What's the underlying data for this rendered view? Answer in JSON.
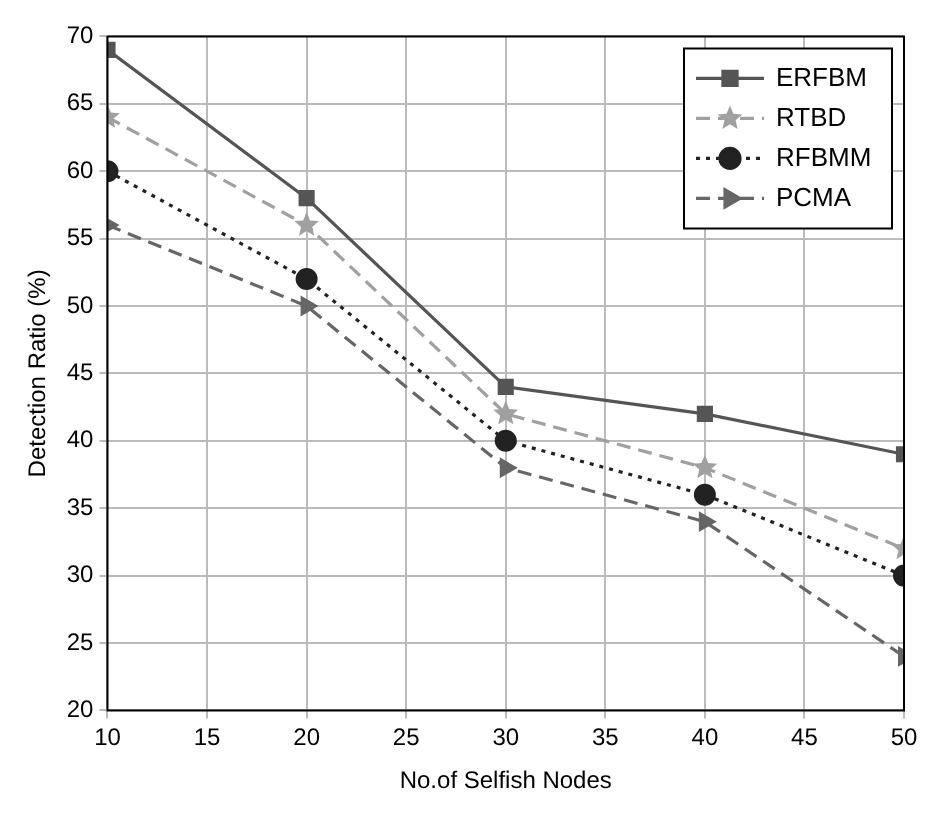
{
  "chart_data": {
    "type": "line",
    "xlabel": "No.of Selfish Nodes",
    "ylabel": "Detection Ratio (%)",
    "x": [
      10,
      20,
      30,
      40,
      50
    ],
    "series": [
      {
        "name": "ERFBM",
        "color": "#555555",
        "marker": "square",
        "line_style": "solid",
        "values": [
          69,
          58,
          44,
          42,
          39
        ]
      },
      {
        "name": "RTBD",
        "color": "#a0a0a0",
        "marker": "star",
        "line_style": "dashed",
        "values": [
          64,
          56,
          42,
          38,
          32
        ]
      },
      {
        "name": "RFBMM",
        "color": "#222222",
        "marker": "circle",
        "line_style": "dotted",
        "values": [
          60,
          52,
          40,
          36,
          30
        ]
      },
      {
        "name": "PCMA",
        "color": "#666666",
        "marker": "triangle",
        "line_style": "dashed",
        "values": [
          56,
          50,
          38,
          34,
          24
        ]
      }
    ],
    "xlim": [
      10,
      50
    ],
    "xticks": [
      10,
      15,
      20,
      25,
      30,
      35,
      40,
      45,
      50
    ],
    "ylim": [
      20,
      70
    ],
    "yticks": [
      20,
      25,
      30,
      35,
      40,
      45,
      50,
      55,
      60,
      65,
      70
    ],
    "grid": true,
    "legend": "top right"
  }
}
